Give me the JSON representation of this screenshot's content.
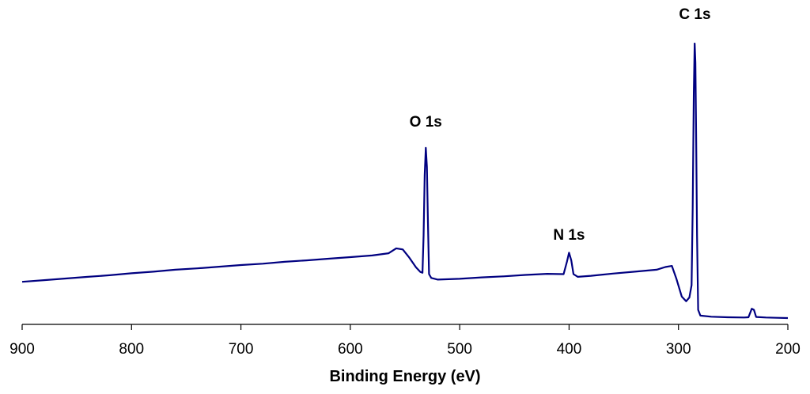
{
  "chart_data": {
    "type": "line",
    "title": "",
    "xlabel": "Binding Energy (eV)",
    "ylabel": "",
    "xlim": [
      900,
      200
    ],
    "x_reversed": true,
    "ylim": [
      0,
      100
    ],
    "grid": false,
    "legend": "none",
    "line_color": "#000080",
    "x_ticks": [
      900,
      800,
      700,
      600,
      500,
      400,
      300,
      200
    ],
    "x_tick_labels": [
      "900",
      "800",
      "700",
      "600",
      "500",
      "400",
      "300",
      "200"
    ],
    "series": [
      {
        "points": [
          [
            900,
            13.2
          ],
          [
            880,
            13.8
          ],
          [
            860,
            14.4
          ],
          [
            840,
            15.0
          ],
          [
            820,
            15.6
          ],
          [
            800,
            16.3
          ],
          [
            780,
            16.9
          ],
          [
            760,
            17.6
          ],
          [
            740,
            18.1
          ],
          [
            720,
            18.7
          ],
          [
            700,
            19.3
          ],
          [
            680,
            19.8
          ],
          [
            660,
            20.5
          ],
          [
            640,
            21.0
          ],
          [
            620,
            21.6
          ],
          [
            600,
            22.2
          ],
          [
            580,
            22.8
          ],
          [
            565,
            23.6
          ],
          [
            558,
            25.4
          ],
          [
            552,
            25.0
          ],
          [
            546,
            22.0
          ],
          [
            540,
            18.5
          ],
          [
            536,
            16.8
          ],
          [
            534,
            16.5
          ],
          [
            533,
            30
          ],
          [
            532,
            52
          ],
          [
            531,
            62
          ],
          [
            530,
            55
          ],
          [
            529,
            35
          ],
          [
            528,
            16.0
          ],
          [
            526,
            14.6
          ],
          [
            520,
            14.0
          ],
          [
            500,
            14.3
          ],
          [
            480,
            14.8
          ],
          [
            460,
            15.2
          ],
          [
            440,
            15.7
          ],
          [
            420,
            16.1
          ],
          [
            405,
            16.0
          ],
          [
            402,
            20.5
          ],
          [
            400,
            23.8
          ],
          [
            398,
            21.0
          ],
          [
            396,
            16.0
          ],
          [
            392,
            15.0
          ],
          [
            380,
            15.4
          ],
          [
            360,
            16.2
          ],
          [
            340,
            16.9
          ],
          [
            320,
            17.6
          ],
          [
            312,
            18.6
          ],
          [
            306,
            19.0
          ],
          [
            302,
            14.5
          ],
          [
            297,
            7.8
          ],
          [
            293,
            6.1
          ],
          [
            290,
            7.5
          ],
          [
            288,
            12.0
          ],
          [
            287,
            40
          ],
          [
            286,
            82
          ],
          [
            285.2,
            100
          ],
          [
            284.5,
            93
          ],
          [
            283.8,
            65
          ],
          [
            283,
            30
          ],
          [
            282,
            3.0
          ],
          [
            280,
            0.9
          ],
          [
            270,
            0.5
          ],
          [
            255,
            0.3
          ],
          [
            240,
            0.2
          ],
          [
            236,
            0.3
          ],
          [
            233,
            3.4
          ],
          [
            231,
            3.0
          ],
          [
            229,
            0.4
          ],
          [
            220,
            0.2
          ],
          [
            210,
            0.1
          ],
          [
            200,
            0.0
          ]
        ]
      }
    ],
    "annotations": [
      {
        "text": "O 1s",
        "x": 531
      },
      {
        "text": "N 1s",
        "x": 400
      },
      {
        "text": "C 1s",
        "x": 285
      }
    ]
  }
}
